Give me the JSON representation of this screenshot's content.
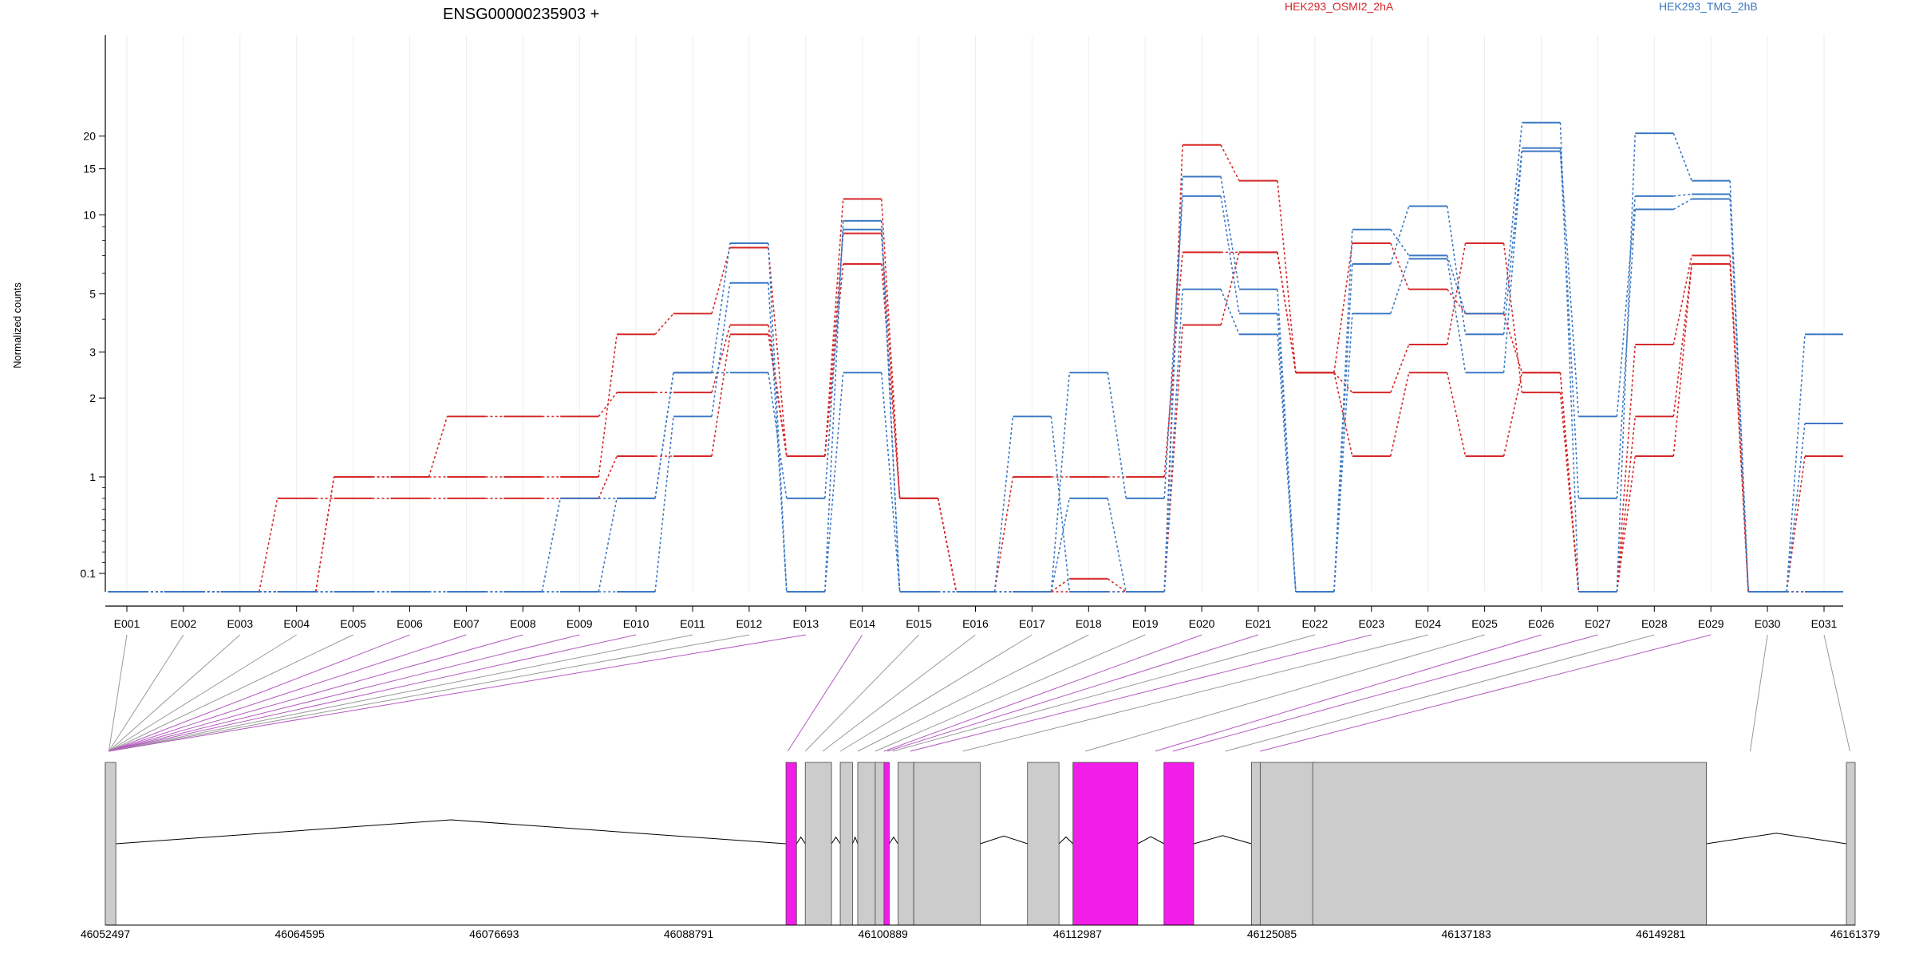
{
  "chart_data": {
    "type": "line",
    "title": "ENSG00000235903 +",
    "ylabel": "Normalized counts",
    "y_scale": "log",
    "yticks": [
      0.1,
      1,
      2,
      3,
      5,
      10,
      15,
      20
    ],
    "ytick_labels": [
      "0.1",
      "1",
      "2",
      "3",
      "5",
      "10",
      "15",
      "20"
    ],
    "categories": [
      "E001",
      "E002",
      "E003",
      "E004",
      "E005",
      "E006",
      "E007",
      "E008",
      "E009",
      "E010",
      "E011",
      "E012",
      "E013",
      "E014",
      "E015",
      "E016",
      "E017",
      "E018",
      "E019",
      "E020",
      "E021",
      "E022",
      "E023",
      "E024",
      "E025",
      "E026",
      "E027",
      "E028",
      "E029",
      "E030",
      "E031"
    ],
    "legend": [
      {
        "label": "HEK293_OSMI2_2hA",
        "color": "#d62728"
      },
      {
        "label": "HEK293_TMG_2hB",
        "color": "#3b78c4"
      }
    ],
    "series": [
      {
        "group": 0,
        "values": [
          0,
          0,
          0,
          0.8,
          0.8,
          0.8,
          0.8,
          0.8,
          0.8,
          1.2,
          1.2,
          3.5,
          1.2,
          6.5,
          0.8,
          0,
          0,
          0.05,
          0,
          3.8,
          7.2,
          2.5,
          2.1,
          3.2,
          7.8,
          2.1,
          0,
          1.2,
          6.5,
          0,
          0
        ]
      },
      {
        "group": 0,
        "values": [
          0,
          0,
          0,
          0,
          1,
          1,
          1.7,
          1.7,
          1.7,
          2.1,
          2.1,
          3.8,
          1.2,
          8.5,
          0.8,
          0,
          1,
          1,
          1,
          7.2,
          7.2,
          2.5,
          1.2,
          2.5,
          1.2,
          2.5,
          0,
          1.7,
          6.5,
          0,
          0
        ]
      },
      {
        "group": 0,
        "values": [
          0,
          0,
          0,
          0,
          1,
          1,
          1,
          1,
          1,
          3.5,
          4.2,
          7.5,
          1.2,
          11.5,
          0.8,
          0,
          0,
          0,
          0,
          18.5,
          13.5,
          2.5,
          7.8,
          5.2,
          4.2,
          2.5,
          0,
          3.2,
          7,
          0,
          1.2
        ]
      },
      {
        "group": 1,
        "values": [
          0,
          0,
          0,
          0,
          0,
          0,
          0,
          0,
          0,
          0,
          1.7,
          5.5,
          0,
          2.5,
          0,
          0,
          1.7,
          0,
          0,
          5.2,
          3.5,
          0,
          4.2,
          6.8,
          2.5,
          17.5,
          0.8,
          10.5,
          11.5,
          0,
          1.6
        ]
      },
      {
        "group": 1,
        "values": [
          0,
          0,
          0,
          0,
          0,
          0,
          0,
          0,
          0.8,
          0.8,
          2.5,
          2.5,
          0.8,
          8.8,
          0,
          0,
          0,
          2.5,
          0.8,
          11.8,
          4.2,
          0,
          6.5,
          10.8,
          3.5,
          18,
          1.7,
          11.8,
          12,
          0,
          3.5
        ]
      },
      {
        "group": 1,
        "values": [
          0,
          0,
          0,
          0,
          0,
          0,
          0,
          0,
          0,
          0.8,
          2.5,
          7.8,
          0,
          9.5,
          0,
          0,
          0,
          0.8,
          0,
          14,
          5.2,
          0,
          8.8,
          7,
          4.2,
          22.5,
          0,
          20.5,
          13.5,
          0,
          0
        ]
      }
    ],
    "genomic_axis": {
      "tick_labels": [
        "46052497",
        "46064595",
        "46076693",
        "46088791",
        "46100889",
        "46112987",
        "46125085",
        "46137183",
        "46149281",
        "46161379"
      ]
    },
    "transcript_model": {
      "exons_gray": [
        [
          0,
          0.006
        ],
        [
          0.4,
          0.415
        ],
        [
          0.42,
          0.427
        ],
        [
          0.43,
          0.44
        ],
        [
          0.44,
          0.447
        ],
        [
          0.453,
          0.462
        ],
        [
          0.462,
          0.5
        ],
        [
          0.527,
          0.545
        ],
        [
          0.655,
          0.66
        ],
        [
          0.66,
          0.693
        ],
        [
          0.69,
          0.915
        ],
        [
          0.995,
          1.0
        ]
      ],
      "exons_highlight": [
        [
          0.389,
          0.395
        ],
        [
          0.445,
          0.448
        ],
        [
          0.553,
          0.59
        ],
        [
          0.605,
          0.622
        ]
      ],
      "colors": {
        "gray": "#cccccc",
        "highlight": "#f21de8"
      }
    }
  }
}
